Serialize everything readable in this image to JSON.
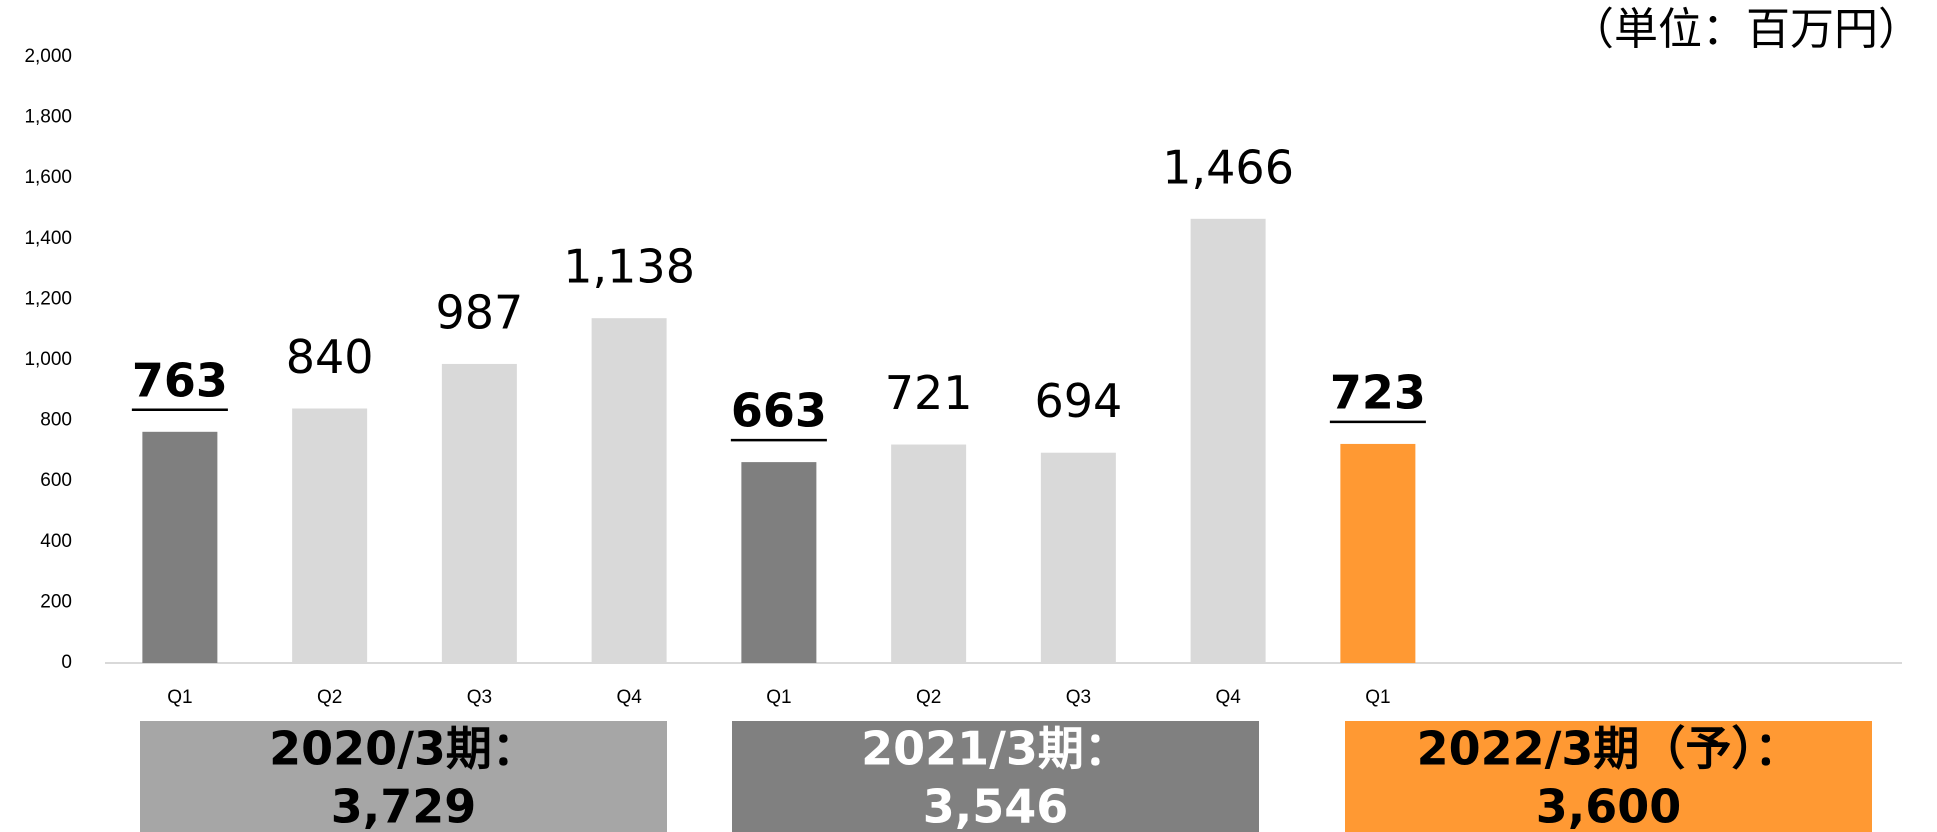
{
  "chart_data": {
    "type": "bar",
    "unit_note": "（単位：百万円）",
    "categories": [
      "Q1",
      "Q2",
      "Q3",
      "Q4",
      "Q1",
      "Q2",
      "Q3",
      "Q4",
      "Q1",
      null,
      null,
      null
    ],
    "values": [
      763,
      840,
      987,
      1138,
      663,
      721,
      694,
      1466,
      723,
      null,
      null,
      null
    ],
    "value_labels": [
      "763",
      "840",
      "987",
      "1,138",
      "663",
      "721",
      "694",
      "1,466",
      "723",
      null,
      null,
      null
    ],
    "colors": [
      "#7f7f7f",
      "#d9d9d9",
      "#d9d9d9",
      "#d9d9d9",
      "#7f7f7f",
      "#d9d9d9",
      "#d9d9d9",
      "#d9d9d9",
      "#ff9933",
      null,
      null,
      null
    ],
    "ylim": [
      0,
      2000
    ],
    "yticks": [
      0,
      200,
      400,
      600,
      800,
      {
        "value": 1000,
        "label": "1,000"
      },
      {
        "value": 1200,
        "label": "1,200"
      },
      {
        "value": 1400,
        "label": "1,400"
      },
      {
        "value": 1600,
        "label": "1,600"
      },
      {
        "value": 1800,
        "label": "1,800"
      },
      {
        "value": 2000,
        "label": "2,000"
      }
    ],
    "grid": false,
    "periods": [
      {
        "label": "2020/3期：",
        "total": 3729,
        "total_label": "3,729",
        "color": "#a6a6a6",
        "text_color": "#000000"
      },
      {
        "label": "2021/3期：",
        "total": 3546,
        "total_label": "3,546",
        "color": "#808080",
        "text_color": "#ffffff"
      },
      {
        "label": "2022/3期（予）：",
        "total": 3600,
        "total_label": "3,600",
        "color": "#ff9933",
        "text_color": "#000000"
      }
    ]
  }
}
